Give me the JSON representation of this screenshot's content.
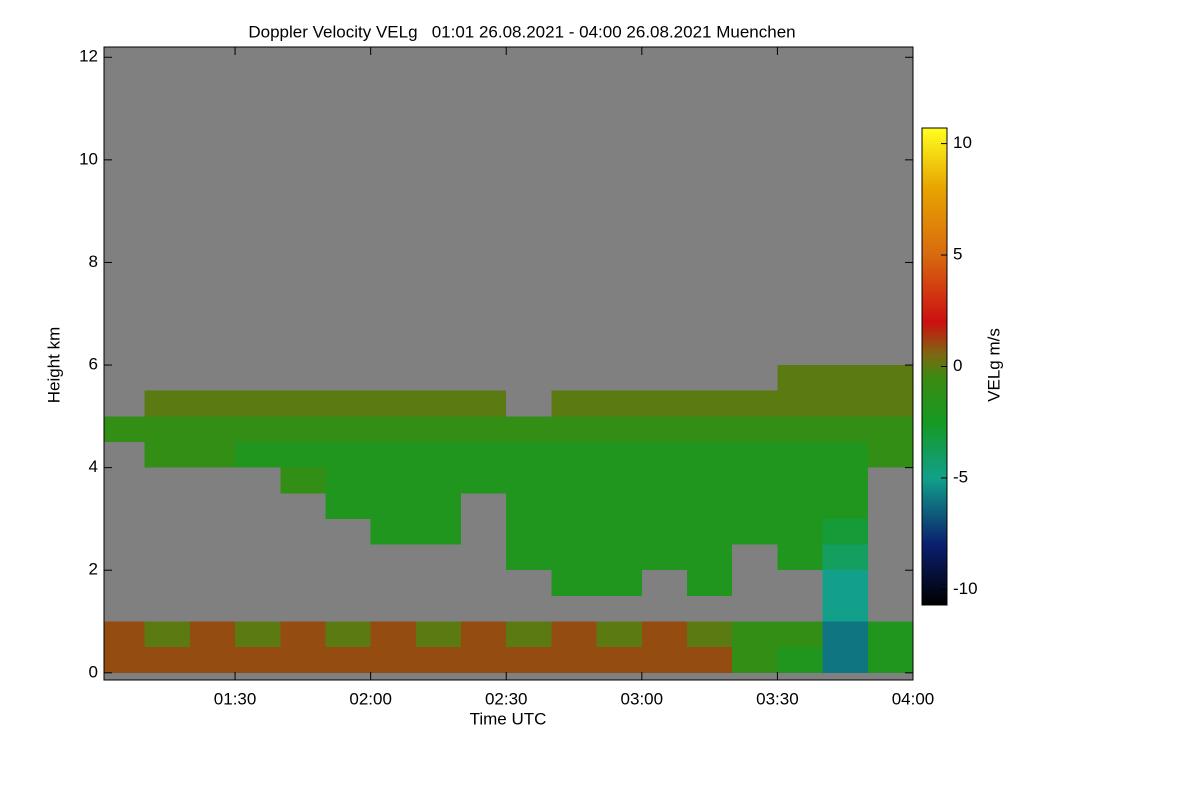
{
  "chart_data": {
    "type": "heatmap",
    "title": "Doppler Velocity VELg   01:01 26.08.2021 - 04:00 26.08.2021 Muenchen",
    "xlabel": "Time UTC",
    "ylabel": "Height km",
    "colorbar_label": "VELg m/s",
    "background": "#808080",
    "x_edges": [
      "01:01",
      "01:10",
      "01:20",
      "01:30",
      "01:40",
      "01:50",
      "02:00",
      "02:10",
      "02:20",
      "02:30",
      "02:40",
      "02:50",
      "03:00",
      "03:10",
      "03:20",
      "03:30",
      "03:40",
      "03:50",
      "04:00"
    ],
    "y_edges": [
      0,
      0.5,
      1,
      1.5,
      2,
      2.5,
      3,
      3.5,
      4,
      4.5,
      5,
      5.5,
      6
    ],
    "z": [
      [
        1,
        1,
        1,
        1,
        1,
        1,
        1,
        1,
        1,
        1,
        1,
        1,
        1,
        1,
        -1,
        -2,
        -6,
        -2
      ],
      [
        1,
        0,
        1,
        0,
        1,
        0,
        1,
        0,
        1,
        0,
        1,
        0,
        1,
        0,
        -1,
        -1,
        -6,
        -2
      ],
      [
        null,
        null,
        null,
        null,
        null,
        null,
        null,
        null,
        null,
        null,
        null,
        null,
        null,
        null,
        null,
        null,
        -5,
        null
      ],
      [
        null,
        null,
        null,
        null,
        null,
        null,
        null,
        null,
        null,
        null,
        -2,
        -2,
        null,
        -2,
        null,
        null,
        -5,
        null
      ],
      [
        null,
        null,
        null,
        null,
        null,
        null,
        null,
        null,
        null,
        -2,
        -2,
        -2,
        -2,
        -2,
        null,
        -2,
        -4,
        null
      ],
      [
        null,
        null,
        null,
        null,
        null,
        null,
        -2,
        -2,
        null,
        -2,
        -2,
        -2,
        -2,
        -2,
        -2,
        -2,
        -3,
        null
      ],
      [
        null,
        null,
        null,
        null,
        null,
        -2,
        -2,
        -2,
        null,
        -2,
        -2,
        -2,
        -2,
        -2,
        -2,
        -2,
        -2,
        null
      ],
      [
        null,
        null,
        null,
        null,
        -1,
        -2,
        -2,
        -2,
        -2,
        -2,
        -2,
        -2,
        -2,
        -2,
        -2,
        -2,
        -2,
        null
      ],
      [
        null,
        -1,
        -1,
        -2,
        -2,
        -2,
        -2,
        -2,
        -2,
        -2,
        -2,
        -2,
        -2,
        -2,
        -2,
        -2,
        -2,
        -1
      ],
      [
        -1,
        -1,
        -1,
        -1,
        -1,
        -1,
        -1,
        -1,
        -1,
        -1,
        -1,
        -1,
        -1,
        -1,
        -1,
        -1,
        -1,
        -1
      ],
      [
        null,
        0,
        0,
        0,
        0,
        0,
        0,
        0,
        0,
        null,
        0,
        0,
        0,
        0,
        0,
        0,
        0,
        0
      ],
      [
        null,
        null,
        null,
        null,
        null,
        null,
        null,
        null,
        null,
        null,
        null,
        null,
        null,
        null,
        null,
        0,
        0,
        0
      ]
    ],
    "xlim": [
      "01:01",
      "04:00"
    ],
    "xticks": [
      "01:30",
      "02:00",
      "02:30",
      "03:00",
      "03:30",
      "04:00"
    ],
    "ylim": [
      -0.14,
      12.2
    ],
    "yticks": [
      0,
      2,
      4,
      6,
      8,
      10,
      12
    ],
    "zlim": [
      -10.7,
      10.7
    ],
    "zticks": [
      -10,
      -5,
      0,
      5,
      10
    ],
    "colormap": [
      {
        "value": -10.7,
        "color": "#000000"
      },
      {
        "value": -8,
        "color": "#0a1f6e"
      },
      {
        "value": -5,
        "color": "#12a08a"
      },
      {
        "value": -2.5,
        "color": "#169a22"
      },
      {
        "value": -0.5,
        "color": "#3c8a12"
      },
      {
        "value": 0.5,
        "color": "#7a6a12"
      },
      {
        "value": 2,
        "color": "#cc1010"
      },
      {
        "value": 5,
        "color": "#d86a10"
      },
      {
        "value": 8,
        "color": "#e8a400"
      },
      {
        "value": 10.7,
        "color": "#ffff20"
      }
    ]
  }
}
